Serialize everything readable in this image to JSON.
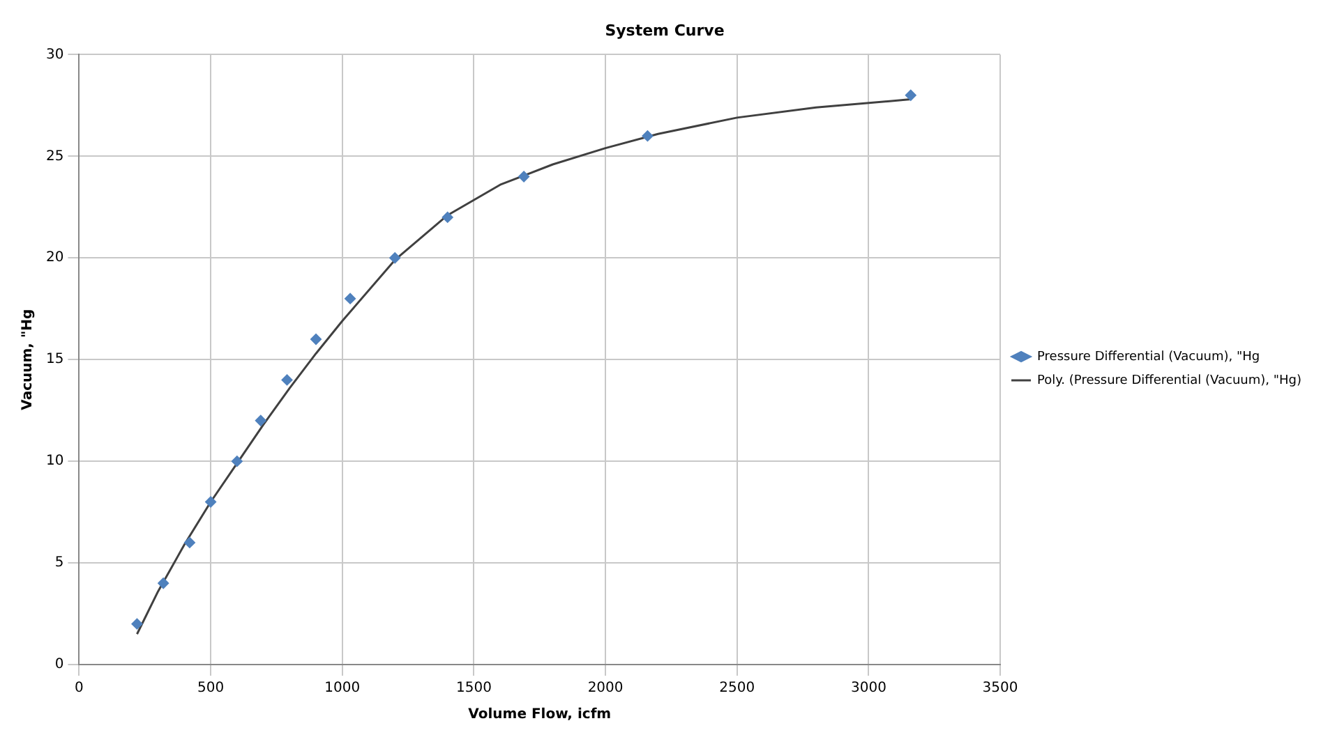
{
  "chart_data": {
    "type": "scatter",
    "title": "System Curve",
    "xlabel": "Volume Flow, icfm",
    "ylabel": "Vacuum, \"Hg",
    "xlim": [
      0,
      3500
    ],
    "xticks": [
      0,
      500,
      1000,
      1500,
      2000,
      2500,
      3000,
      3500
    ],
    "ylim": [
      0,
      30
    ],
    "yticks": [
      0,
      5,
      10,
      15,
      20,
      25,
      30
    ],
    "grid": true,
    "legend": "right",
    "marker": "diamond",
    "series": [
      {
        "name": "Pressure Differential (Vacuum), \"Hg",
        "color": "#4f81bd",
        "x": [
          220,
          320,
          420,
          500,
          600,
          690,
          790,
          900,
          1030,
          1200,
          1400,
          1690,
          2160,
          3160
        ],
        "values": [
          2,
          4,
          6,
          8,
          10,
          12,
          14,
          16,
          18,
          20,
          22,
          24,
          26,
          28
        ]
      },
      {
        "name": "Poly. (Pressure Differential (Vacuum), \"Hg)",
        "type": "line",
        "color": "#404040",
        "marker": "none",
        "line_style": "solid",
        "x": [
          220,
          300,
          400,
          500,
          600,
          700,
          800,
          900,
          1000,
          1200,
          1400,
          1600,
          1800,
          2000,
          2200,
          2500,
          2800,
          3160
        ],
        "values": [
          1.5,
          3.6,
          5.9,
          8.0,
          9.9,
          11.8,
          13.6,
          15.3,
          16.9,
          19.9,
          22.1,
          23.6,
          24.6,
          25.4,
          26.1,
          26.9,
          27.4,
          27.8
        ]
      }
    ]
  }
}
